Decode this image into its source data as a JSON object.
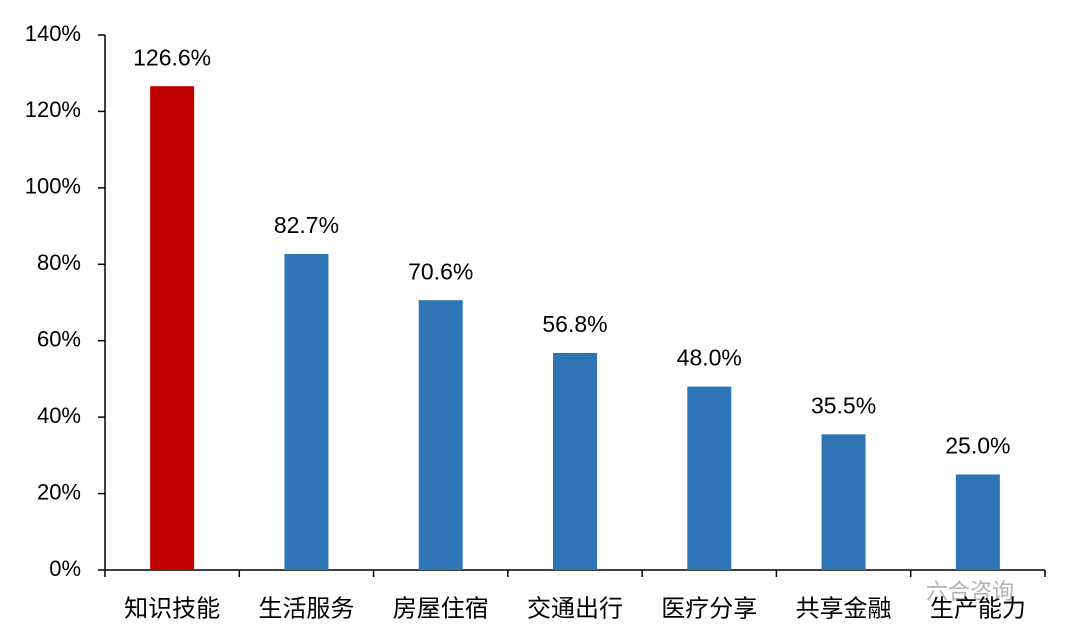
{
  "chart_data": {
    "type": "bar",
    "categories": [
      "知识技能",
      "生活服务",
      "房屋住宿",
      "交通出行",
      "医疗分享",
      "共享金融",
      "生产能力"
    ],
    "values": [
      126.6,
      82.7,
      70.6,
      56.8,
      48.0,
      35.5,
      25.0
    ],
    "value_labels": [
      "126.6%",
      "82.7%",
      "70.6%",
      "56.8%",
      "48.0%",
      "35.5%",
      "25.0%"
    ],
    "colors": [
      "#c00000",
      "#2e75b6",
      "#2e75b6",
      "#2e75b6",
      "#2e75b6",
      "#2e75b6",
      "#2e75b6"
    ],
    "ylim": [
      0,
      140
    ],
    "yticks": [
      {
        "value": 0,
        "label": "0%"
      },
      {
        "value": 20,
        "label": "20%"
      },
      {
        "value": 40,
        "label": "40%"
      },
      {
        "value": 60,
        "label": "60%"
      },
      {
        "value": 80,
        "label": "80%"
      },
      {
        "value": 100,
        "label": "100%"
      },
      {
        "value": 120,
        "label": "120%"
      },
      {
        "value": 140,
        "label": "140%"
      }
    ],
    "grid": false,
    "watermark": "六合咨询"
  }
}
